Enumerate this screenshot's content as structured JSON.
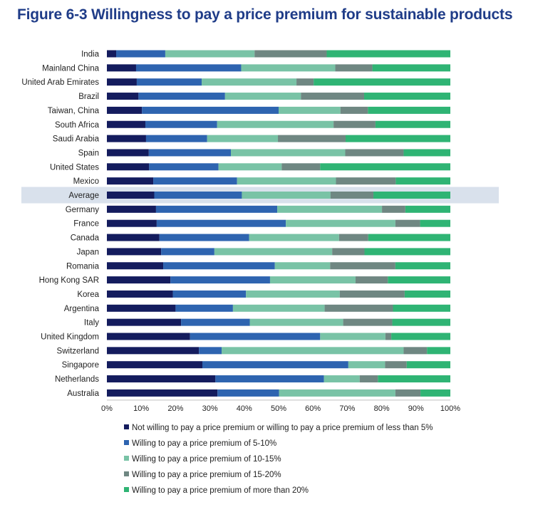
{
  "title": "Figure 6-3 Willingness to pay a price premium for sustainable products",
  "colors": {
    "title": "#1f3c88",
    "highlight_band": "#d9e1ec",
    "series": [
      "#141c5e",
      "#2e64b0",
      "#79c3a6",
      "#6f8782",
      "#2fb474"
    ]
  },
  "chart_data": {
    "type": "bar",
    "orientation": "horizontal",
    "stacked": true,
    "title": "Figure 6-3 Willingness to pay a price premium for sustainable products",
    "xlabel": "",
    "ylabel": "",
    "xlim": [
      0,
      100
    ],
    "x_ticks": [
      "0%",
      "10%",
      "20%",
      "30%",
      "40%",
      "50%",
      "60%",
      "70%",
      "80%",
      "90%",
      "100%"
    ],
    "grid": false,
    "legend_position": "bottom",
    "highlight_category": "Average",
    "categories": [
      "India",
      "Mainland China",
      "United Arab Emirates",
      "Brazil",
      "Taiwan, China",
      "South Africa",
      "Saudi Arabia",
      "Spain",
      "United States",
      "Mexico",
      "Average",
      "Germany",
      "France",
      "Canada",
      "Japan",
      "Romania",
      "Hong Kong SAR",
      "Korea",
      "Argentina",
      "Italy",
      "United Kingdom",
      "Switzerland",
      "Singapore",
      "Netherlands",
      "Australia"
    ],
    "series": [
      {
        "name": "Not willing to pay a price premium or willing to pay a price premium of less than 5%",
        "values": [
          2.7,
          8.5,
          8.7,
          9.2,
          10.2,
          11.2,
          11.4,
          12.2,
          12.3,
          13.5,
          13.8,
          14.3,
          14.5,
          15.3,
          15.8,
          16.4,
          18.5,
          19.2,
          20.0,
          21.6,
          24.2,
          26.8,
          27.8,
          31.6,
          32.2
        ]
      },
      {
        "name": "Willing to pay a price premium of 5-10%",
        "values": [
          14.3,
          30.6,
          18.9,
          25.2,
          39.8,
          20.9,
          17.8,
          23.9,
          20.2,
          24.4,
          25.5,
          35.3,
          37.6,
          26.1,
          15.5,
          32.5,
          29.0,
          21.3,
          16.7,
          20.0,
          37.9,
          6.6,
          42.5,
          31.6,
          17.9
        ]
      },
      {
        "name": "Willing to pay a price premium of 10-15%",
        "values": [
          26.0,
          27.4,
          27.6,
          22.1,
          18.0,
          33.9,
          20.6,
          33.3,
          18.4,
          28.8,
          25.8,
          30.5,
          31.9,
          26.2,
          34.3,
          16.1,
          24.9,
          27.3,
          26.7,
          27.2,
          19.0,
          53.0,
          10.7,
          10.4,
          33.9
        ]
      },
      {
        "name": "Willing to pay a price premium of 15-20%",
        "values": [
          21.0,
          10.8,
          5.0,
          18.4,
          8.0,
          12.2,
          19.7,
          17.0,
          11.2,
          17.4,
          12.5,
          6.8,
          7.2,
          8.5,
          9.4,
          19.0,
          9.4,
          18.9,
          19.9,
          14.3,
          1.7,
          6.8,
          6.3,
          5.3,
          7.3
        ]
      },
      {
        "name": "Willing to pay a price premium of more than 20%",
        "values": [
          36.0,
          22.7,
          39.8,
          25.1,
          24.0,
          21.8,
          30.5,
          13.6,
          37.9,
          15.9,
          22.4,
          13.1,
          8.8,
          23.9,
          25.0,
          16.0,
          18.2,
          13.3,
          16.7,
          16.9,
          17.2,
          6.8,
          12.7,
          21.1,
          8.7
        ]
      }
    ]
  }
}
